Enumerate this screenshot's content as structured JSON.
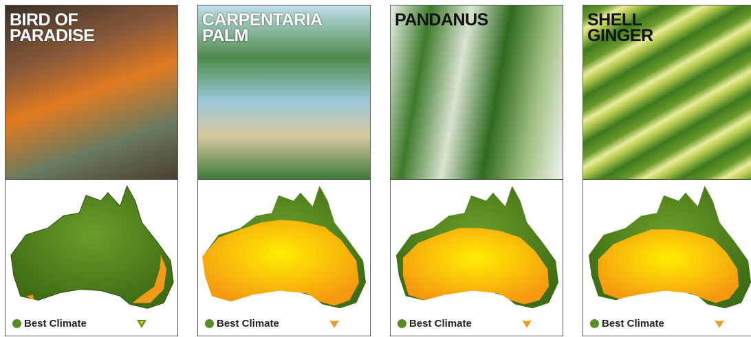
{
  "cards": [
    {
      "title": [
        "BIRD OF",
        "PARADISE"
      ],
      "legend": "Best Climate"
    },
    {
      "title": [
        "CARPENTARIA",
        "PALM"
      ],
      "legend": "Best Climate"
    },
    {
      "title": [
        "PANDANUS"
      ],
      "legend": "Best Climate"
    },
    {
      "title": [
        "SHELL",
        "GINGER"
      ],
      "legend": "Best Climate"
    }
  ]
}
